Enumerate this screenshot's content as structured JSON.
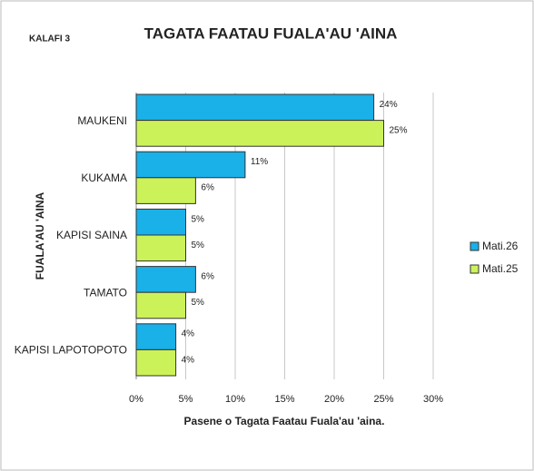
{
  "chart_data": {
    "type": "hbar",
    "label": "KALAFI 3",
    "title": "TAGATA FAATAU FUALA'AU 'AINA",
    "x_label": "Pasene o Tagata Faatau Fuala'au 'aina.",
    "y_label": "FUALA'AU 'AINA",
    "categories": [
      "MAUKENI",
      "KUKAMA",
      "KAPISI SAINA",
      "TAMATO",
      "KAPISI LAPOTOPOTO"
    ],
    "series": [
      {
        "name": "Mati.26",
        "color": "#1ab0e8",
        "values": [
          24,
          11,
          5,
          6,
          4
        ],
        "value_labels": [
          "24%",
          "11%",
          "5%",
          "6%",
          "4%"
        ]
      },
      {
        "name": "Mati.25",
        "color": "#ccf25a",
        "values": [
          25,
          6,
          5,
          5,
          4
        ],
        "value_labels": [
          "25%",
          "6%",
          "5%",
          "5%",
          "4%"
        ]
      }
    ],
    "xlim": [
      0,
      30
    ],
    "xticks": [
      {
        "value": 0,
        "label": "0%"
      },
      {
        "value": 5,
        "label": "5%"
      },
      {
        "value": 10,
        "label": "10%"
      },
      {
        "value": 15,
        "label": "15%"
      },
      {
        "value": 20,
        "label": "20%"
      },
      {
        "value": 25,
        "label": "25%"
      },
      {
        "value": 30,
        "label": "30%"
      }
    ],
    "grid": true,
    "legend": "right"
  }
}
